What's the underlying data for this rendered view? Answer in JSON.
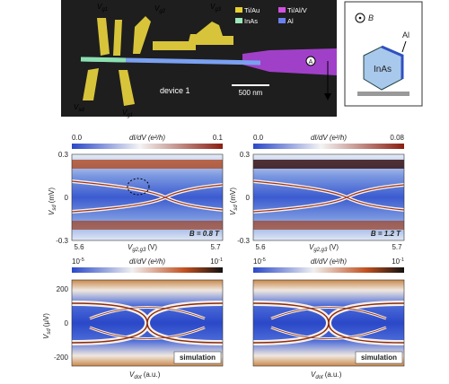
{
  "device_image": {
    "gate_labels": [
      {
        "main": "V",
        "sub": "g1"
      },
      {
        "main": "V",
        "sub": "g2"
      },
      {
        "main": "V",
        "sub": "g3"
      },
      {
        "main": "V",
        "sub": "sd"
      },
      {
        "main": "V",
        "sub": "g1"
      }
    ],
    "device_name": "device 1",
    "scale_bar": "500 nm",
    "legend": [
      "Ti/Au",
      "Ti/Al/V",
      "InAs",
      "Al"
    ],
    "probe_label": "A"
  },
  "inset": {
    "field": "B",
    "shell": "Al",
    "core": "InAs"
  },
  "measured_panels": [
    {
      "colorbar": {
        "min": "0.0",
        "max": "0.1",
        "label": "dI/dV (e²/h)"
      },
      "yticks": [
        "0.3",
        "0",
        "-0.3"
      ],
      "ylabel": {
        "main": "V",
        "sub": "sd",
        "unit": "(mV)"
      },
      "xticks": [
        "5.6",
        "5.7"
      ],
      "xlabel": {
        "main": "V",
        "sub": "g2,g3",
        "unit": "(V)"
      },
      "field": "B = 0.8 T"
    },
    {
      "colorbar": {
        "min": "0.0",
        "max": "0.08",
        "label": "dI/dV (e²/h)"
      },
      "yticks": [
        "0.3",
        "0",
        "-0.3"
      ],
      "ylabel": {
        "main": "V",
        "sub": "sd",
        "unit": "(mV)"
      },
      "xticks": [
        "5.6",
        "5.7"
      ],
      "xlabel": {
        "main": "V",
        "sub": "g2,g3",
        "unit": "(V)"
      },
      "field": "B = 1.2 T"
    }
  ],
  "simulation_panels": [
    {
      "colorbar": {
        "min": {
          "base": "10",
          "exp": "-5"
        },
        "max": {
          "base": "10",
          "exp": "-1"
        },
        "label": "dI/dV (e²/h)"
      },
      "yticks": [
        "200",
        "0",
        "-200"
      ],
      "ylabel": {
        "main": "V",
        "sub": "sd",
        "unit": "(μV)"
      },
      "xlabel": {
        "main": "V",
        "sub": "dot",
        "unit": "(a.u.)"
      },
      "tag": "simulation"
    },
    {
      "colorbar": {
        "min": {
          "base": "10",
          "exp": "-5"
        },
        "max": {
          "base": "10",
          "exp": "-1"
        },
        "label": "dI/dV (e²/h)"
      },
      "xlabel": {
        "main": "V",
        "sub": "dot",
        "unit": "(a.u.)"
      },
      "tag": "simulation"
    }
  ]
}
